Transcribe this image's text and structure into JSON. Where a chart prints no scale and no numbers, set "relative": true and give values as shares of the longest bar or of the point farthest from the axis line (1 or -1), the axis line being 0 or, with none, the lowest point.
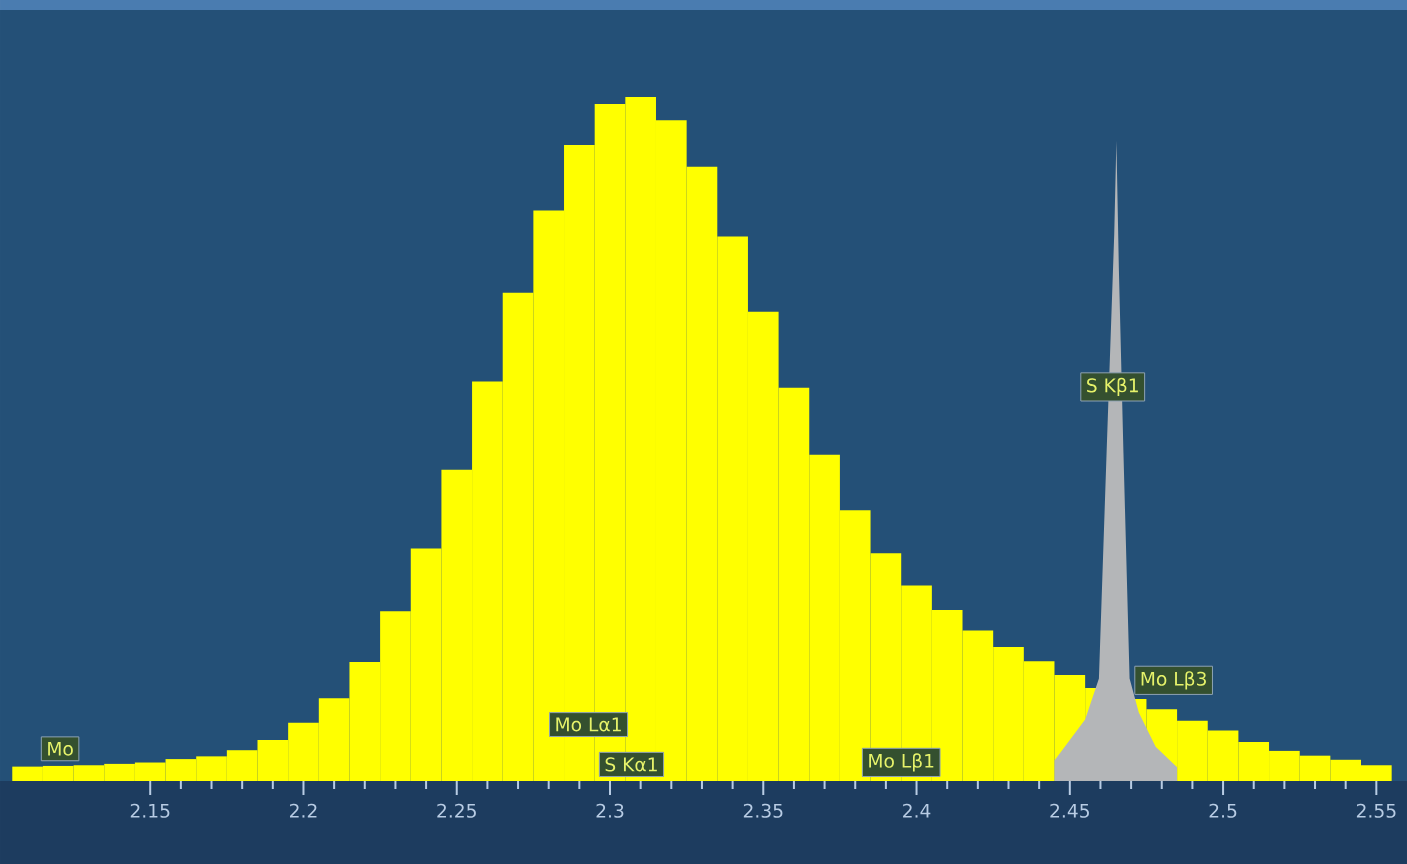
{
  "chart_data": {
    "type": "histogram",
    "relative": true,
    "bins": [
      2.105,
      2.115,
      2.125,
      2.135,
      2.145,
      2.155,
      2.165,
      2.175,
      2.185,
      2.195,
      2.205,
      2.215,
      2.225,
      2.235,
      2.245,
      2.255,
      2.265,
      2.275,
      2.285,
      2.295,
      2.305,
      2.315,
      2.325,
      2.335,
      2.345,
      2.355,
      2.365,
      2.375,
      2.385,
      2.395,
      2.405,
      2.415,
      2.425,
      2.435,
      2.445,
      2.455,
      2.465,
      2.475,
      2.485,
      2.495,
      2.505,
      2.515,
      2.525,
      2.535,
      2.545,
      2.555
    ],
    "xlim": [
      2.101,
      2.56
    ],
    "xticks": [
      2.15,
      2.2,
      2.25,
      2.3,
      2.35,
      2.4,
      2.45,
      2.5,
      2.55
    ],
    "series": [
      {
        "type": "histogram",
        "color": "#ffff00",
        "values": [
          0.021,
          0.022,
          0.023,
          0.025,
          0.027,
          0.032,
          0.036,
          0.045,
          0.06,
          0.085,
          0.121,
          0.174,
          0.248,
          0.34,
          0.455,
          0.584,
          0.714,
          0.834,
          0.93,
          0.99,
          1,
          0.966,
          0.898,
          0.796,
          0.686,
          0.575,
          0.477,
          0.396,
          0.333,
          0.286,
          0.25,
          0.22,
          0.196,
          0.175,
          0.155,
          0.136,
          0.12,
          0.105,
          0.088,
          0.074,
          0.057,
          0.044,
          0.037,
          0.031,
          0.023
        ]
      },
      {
        "type": "area",
        "color": "#b4b6b8",
        "x": [
          2.445,
          2.455,
          2.4595,
          2.462,
          2.4645,
          2.4652,
          2.466,
          2.4675,
          2.4695,
          2.4725,
          2.478,
          2.485
        ],
        "values": [
          0.03,
          0.09,
          0.15,
          0.48,
          0.8,
          0.936,
          0.75,
          0.48,
          0.15,
          0.1,
          0.05,
          0.02
        ]
      }
    ],
    "annotations": [
      {
        "text": "Mo",
        "x": 2.1206,
        "y": 0.023
      },
      {
        "text": "Mo Lα1",
        "x": 2.293,
        "y": 0
      },
      {
        "text": "S Kα1",
        "x": 2.307,
        "y": 0
      },
      {
        "text": "Mo Lβ1",
        "x": 2.395,
        "y": 0
      },
      {
        "text": "S Kβ1",
        "x": 2.464,
        "y": 0.549
      },
      {
        "text": "Mo Lβ3",
        "x": 2.473,
        "y": 0.12
      }
    ]
  }
}
